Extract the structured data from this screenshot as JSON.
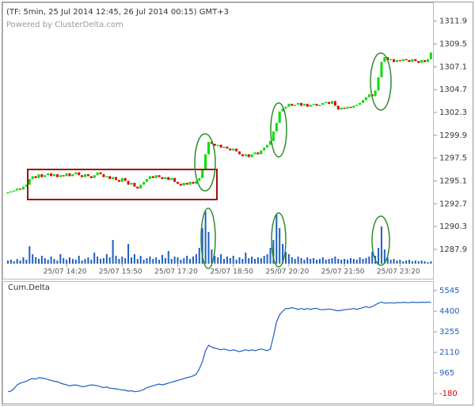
{
  "chart_data": [
    {
      "type": "candlestick",
      "title": "(TF: 5min, 25 Jul 2014 12:45, 26 Jul 2014 00:15) GMT+3",
      "subtitle": "Powered by ClusterDelta.com",
      "up_color": "#00dd00",
      "down_color": "#dd0000",
      "volume_color": "#1f5fbf",
      "close": [
        1293.9,
        1294.0,
        1294.1,
        1294.3,
        1294.2,
        1294.5,
        1294.7,
        1295.3,
        1295.6,
        1295.4,
        1295.8,
        1295.5,
        1295.7,
        1295.9,
        1295.6,
        1295.8,
        1295.5,
        1295.7,
        1295.6,
        1295.9,
        1295.6,
        1295.8,
        1296.0,
        1295.7,
        1295.5,
        1295.8,
        1295.6,
        1295.4,
        1295.7,
        1296.0,
        1295.8,
        1295.5,
        1295.6,
        1295.3,
        1295.5,
        1295.2,
        1295.0,
        1295.4,
        1295.1,
        1294.7,
        1294.9,
        1294.5,
        1294.3,
        1294.7,
        1295.0,
        1295.3,
        1295.6,
        1295.4,
        1295.7,
        1295.5,
        1295.3,
        1295.5,
        1295.2,
        1295.4,
        1295.0,
        1294.8,
        1294.6,
        1294.9,
        1294.7,
        1295.0,
        1294.8,
        1295.1,
        1295.4,
        1296.3,
        1297.9,
        1299.2,
        1299.0,
        1298.8,
        1298.9,
        1298.6,
        1298.7,
        1298.5,
        1298.3,
        1298.5,
        1298.2,
        1297.9,
        1297.7,
        1297.9,
        1297.6,
        1297.9,
        1298.1,
        1297.9,
        1298.3,
        1298.6,
        1298.9,
        1299.3,
        1300.3,
        1301.2,
        1302.4,
        1302.7,
        1302.9,
        1303.2,
        1303.0,
        1303.1,
        1303.3,
        1303.0,
        1303.2,
        1302.9,
        1303.1,
        1303.2,
        1303.0,
        1303.1,
        1303.3,
        1303.4,
        1303.2,
        1303.5,
        1303.0,
        1302.6,
        1302.8,
        1302.7,
        1302.9,
        1302.8,
        1303.0,
        1303.1,
        1303.3,
        1303.6,
        1303.9,
        1304.2,
        1304.0,
        1304.6,
        1306.0,
        1307.6,
        1308.1,
        1307.8,
        1307.9,
        1307.6,
        1307.8,
        1307.7,
        1307.9,
        1307.8,
        1307.6,
        1307.9,
        1307.7,
        1307.5,
        1307.8,
        1307.6,
        1307.9,
        1308.6
      ],
      "volume": [
        4,
        5,
        3,
        6,
        4,
        8,
        5,
        22,
        12,
        8,
        6,
        10,
        7,
        5,
        9,
        6,
        4,
        12,
        7,
        5,
        8,
        6,
        5,
        10,
        4,
        6,
        8,
        5,
        14,
        9,
        6,
        7,
        12,
        8,
        30,
        10,
        6,
        9,
        7,
        25,
        8,
        12,
        6,
        10,
        5,
        7,
        9,
        6,
        8,
        5,
        11,
        7,
        16,
        6,
        9,
        8,
        5,
        7,
        10,
        6,
        9,
        12,
        20,
        45,
        66,
        40,
        18,
        10,
        8,
        12,
        6,
        9,
        7,
        10,
        5,
        8,
        6,
        14,
        7,
        9,
        6,
        8,
        7,
        10,
        12,
        20,
        30,
        62,
        45,
        25,
        15,
        12,
        8,
        6,
        9,
        7,
        5,
        8,
        6,
        7,
        5,
        6,
        8,
        5,
        6,
        7,
        9,
        6,
        5,
        6,
        5,
        7,
        6,
        5,
        8,
        6,
        7,
        9,
        15,
        10,
        20,
        47,
        18,
        8,
        5,
        6,
        4,
        5,
        3,
        4,
        5,
        3,
        4,
        3,
        4,
        3,
        2,
        3
      ],
      "xticks": [
        {
          "value": 19,
          "label": "25/07 14:20"
        },
        {
          "value": 37,
          "label": "25/07 15:50"
        },
        {
          "value": 55,
          "label": "25/07 17:20"
        },
        {
          "value": 73,
          "label": "25/07 18:50"
        },
        {
          "value": 91,
          "label": "25/07 20:20"
        },
        {
          "value": 109,
          "label": "25/07 21:50"
        },
        {
          "value": 127,
          "label": "25/07 23:20"
        }
      ],
      "ylim": [
        1286.4,
        1313.7
      ],
      "yticks": [
        1311.9,
        1309.5,
        1307.1,
        1304.7,
        1302.3,
        1299.9,
        1297.5,
        1295.1,
        1292.7,
        1290.3,
        1287.9
      ]
    },
    {
      "type": "line",
      "title": "Cum.Delta",
      "color": "#1f5fbf",
      "negative_color": "#dd0000",
      "values": [
        -80,
        -50,
        100,
        300,
        400,
        450,
        500,
        600,
        650,
        620,
        700,
        680,
        650,
        600,
        550,
        500,
        480,
        400,
        350,
        300,
        250,
        280,
        300,
        250,
        200,
        220,
        260,
        300,
        280,
        250,
        200,
        150,
        180,
        120,
        100,
        80,
        50,
        20,
        0,
        -50,
        -20,
        -80,
        -60,
        -20,
        50,
        150,
        200,
        250,
        300,
        350,
        300,
        350,
        400,
        450,
        500,
        550,
        600,
        650,
        700,
        750,
        800,
        900,
        1200,
        1600,
        2200,
        2500,
        2400,
        2350,
        2300,
        2250,
        2300,
        2250,
        2200,
        2250,
        2200,
        2150,
        2200,
        2250,
        2200,
        2250,
        2200,
        2250,
        2300,
        2250,
        2200,
        2300,
        3000,
        3800,
        4200,
        4400,
        4550,
        4550,
        4600,
        4550,
        4500,
        4550,
        4500,
        4550,
        4500,
        4550,
        4550,
        4500,
        4480,
        4500,
        4520,
        4500,
        4450,
        4420,
        4450,
        4480,
        4500,
        4520,
        4550,
        4500,
        4550,
        4600,
        4650,
        4600,
        4650,
        4750,
        4850,
        4900,
        4850,
        4850,
        4870,
        4850,
        4880,
        4870,
        4890,
        4880,
        4870,
        4900,
        4890,
        4880,
        4900,
        4890,
        4900,
        4900
      ],
      "ylim": [
        -665,
        5985
      ],
      "yticks": [
        5545,
        4400,
        3255,
        2110,
        965,
        -180
      ]
    }
  ]
}
